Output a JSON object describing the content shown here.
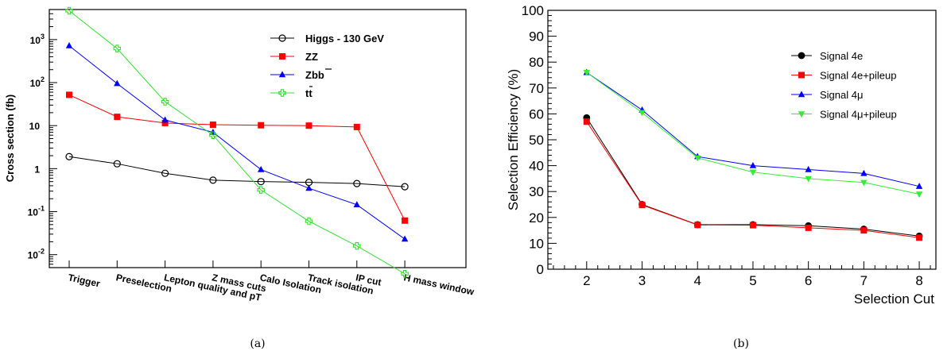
{
  "chart_data": [
    {
      "type": "line",
      "panel_label": "(a)",
      "ylabel": "Cross section (fb)",
      "yscale": "log",
      "ylim": [
        0.005,
        5000
      ],
      "y_ticks": [
        {
          "value": 0.01,
          "base": "10",
          "exp": "-2"
        },
        {
          "value": 0.1,
          "base": "10",
          "exp": "-1"
        },
        {
          "value": 1,
          "base": "1",
          "exp": ""
        },
        {
          "value": 10,
          "base": "10",
          "exp": ""
        },
        {
          "value": 100,
          "base": "10",
          "exp": "2"
        },
        {
          "value": 1000,
          "base": "10",
          "exp": "3"
        }
      ],
      "categories": [
        "Trigger",
        "Preselection",
        "Lepton quality and pT",
        "Z mass cuts",
        "Calo Isolation",
        "Track isolation",
        "IP cut",
        "H mass window"
      ],
      "legend_position": "top-right",
      "series": [
        {
          "name": "Higgs - 130 GeV",
          "color": "#000000",
          "marker": "open-circle",
          "values": [
            1.9,
            1.3,
            0.78,
            0.54,
            0.5,
            0.48,
            0.45,
            0.38
          ]
        },
        {
          "name": "ZZ",
          "color": "#ff0000",
          "marker": "square",
          "values": [
            52,
            16,
            11.5,
            10.5,
            10.2,
            10,
            9.3,
            0.062
          ]
        },
        {
          "name": "Zbb",
          "color": "#0000ff",
          "marker": "triangle-up",
          "values": [
            720,
            95,
            13.5,
            7,
            0.95,
            0.35,
            0.145,
            0.023
          ]
        },
        {
          "name": "tt",
          "color": "#33dd33",
          "marker": "open-cross",
          "values": [
            4700,
            620,
            36,
            6,
            0.32,
            0.06,
            0.016,
            0.0036
          ]
        }
      ]
    },
    {
      "type": "line",
      "panel_label": "(b)",
      "ylabel": "Selection Efficiency (%)",
      "xlabel": "Selection Cut",
      "xlim": [
        1.3,
        8.3
      ],
      "ylim": [
        0,
        100
      ],
      "x_ticks": [
        2,
        3,
        4,
        5,
        6,
        7,
        8
      ],
      "y_ticks": [
        0,
        10,
        20,
        30,
        40,
        50,
        60,
        70,
        80,
        90,
        100
      ],
      "legend_position": "top-right",
      "x": [
        2,
        3,
        4,
        5,
        6,
        7,
        8
      ],
      "series": [
        {
          "name": "Signal 4e",
          "color": "#000000",
          "marker": "circle",
          "values": [
            58.5,
            25,
            17.2,
            17.2,
            16.8,
            15.5,
            12.8
          ]
        },
        {
          "name": "Signal 4e+pileup",
          "color": "#ff0000",
          "marker": "square",
          "values": [
            57,
            24.8,
            17.1,
            17,
            16,
            15,
            12.2
          ]
        },
        {
          "name": "Signal 4μ",
          "color": "#0000ff",
          "marker": "triangle-up",
          "values": [
            76,
            61.5,
            43.5,
            40,
            38.5,
            37,
            32
          ]
        },
        {
          "name": "Signal 4μ+pileup",
          "color": "#33ee33",
          "marker": "triangle-down",
          "values": [
            76,
            60.5,
            43,
            37.5,
            35,
            33.5,
            29
          ]
        }
      ]
    }
  ]
}
